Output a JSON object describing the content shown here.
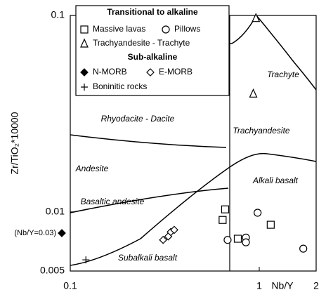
{
  "chart_data": {
    "type": "scatter",
    "x_label": "Nb/Y",
    "y_label": "Zr/TiO₂*10000",
    "xlim": [
      0.1,
      2
    ],
    "ylim": [
      0.005,
      0.1
    ],
    "log_x": true,
    "log_y": true,
    "xticks": [
      0.1,
      1,
      2
    ],
    "yticks": [
      0.005,
      0.01,
      0.1
    ],
    "legend_groups": [
      {
        "title": "Transitional to alkaline",
        "series": [
          {
            "name": "Massive lavas",
            "marker": "square",
            "color": "#000000",
            "x": [
              0.66,
              0.64,
              0.77,
              1.15
            ],
            "values": [
              0.0103,
              0.0091,
              0.0073,
              0.0086
            ]
          },
          {
            "name": "Pillows",
            "marker": "circle",
            "color": "#000000",
            "x": [
              0.68,
              0.85,
              0.85,
              0.98,
              1.71
            ],
            "values": [
              0.0072,
              0.0074,
              0.007,
              0.0099,
              0.0065
            ]
          },
          {
            "name": "Trachyandesite - Trachyte",
            "marker": "triangle",
            "color": "#000000",
            "x": [
              0.96,
              0.93
            ],
            "values": [
              0.097,
              0.04
            ]
          }
        ]
      },
      {
        "title": "Sub-alkaline",
        "series": [
          {
            "name": "N-MORB",
            "marker": "diamond-filled",
            "color": "#000000",
            "x_note": "(Nb/Y=0.03)",
            "values": [
              0.0078
            ]
          },
          {
            "name": "E-MORB",
            "marker": "diamond",
            "color": "#000000",
            "x": [
              0.31,
              0.33,
              0.34,
              0.355
            ],
            "values": [
              0.0072,
              0.0075,
              0.0079,
              0.0081
            ]
          },
          {
            "name": "Boninitic rocks",
            "marker": "plus",
            "color": "#000000",
            "x": [
              0.121
            ],
            "values": [
              0.0057
            ]
          }
        ]
      }
    ],
    "field_labels": [
      "Trachyte",
      "Rhyodacite - Dacite",
      "Trachyandesite",
      "Andesite",
      "Alkali basalt",
      "Basaltic andesite",
      "Subalkali basalt"
    ]
  }
}
